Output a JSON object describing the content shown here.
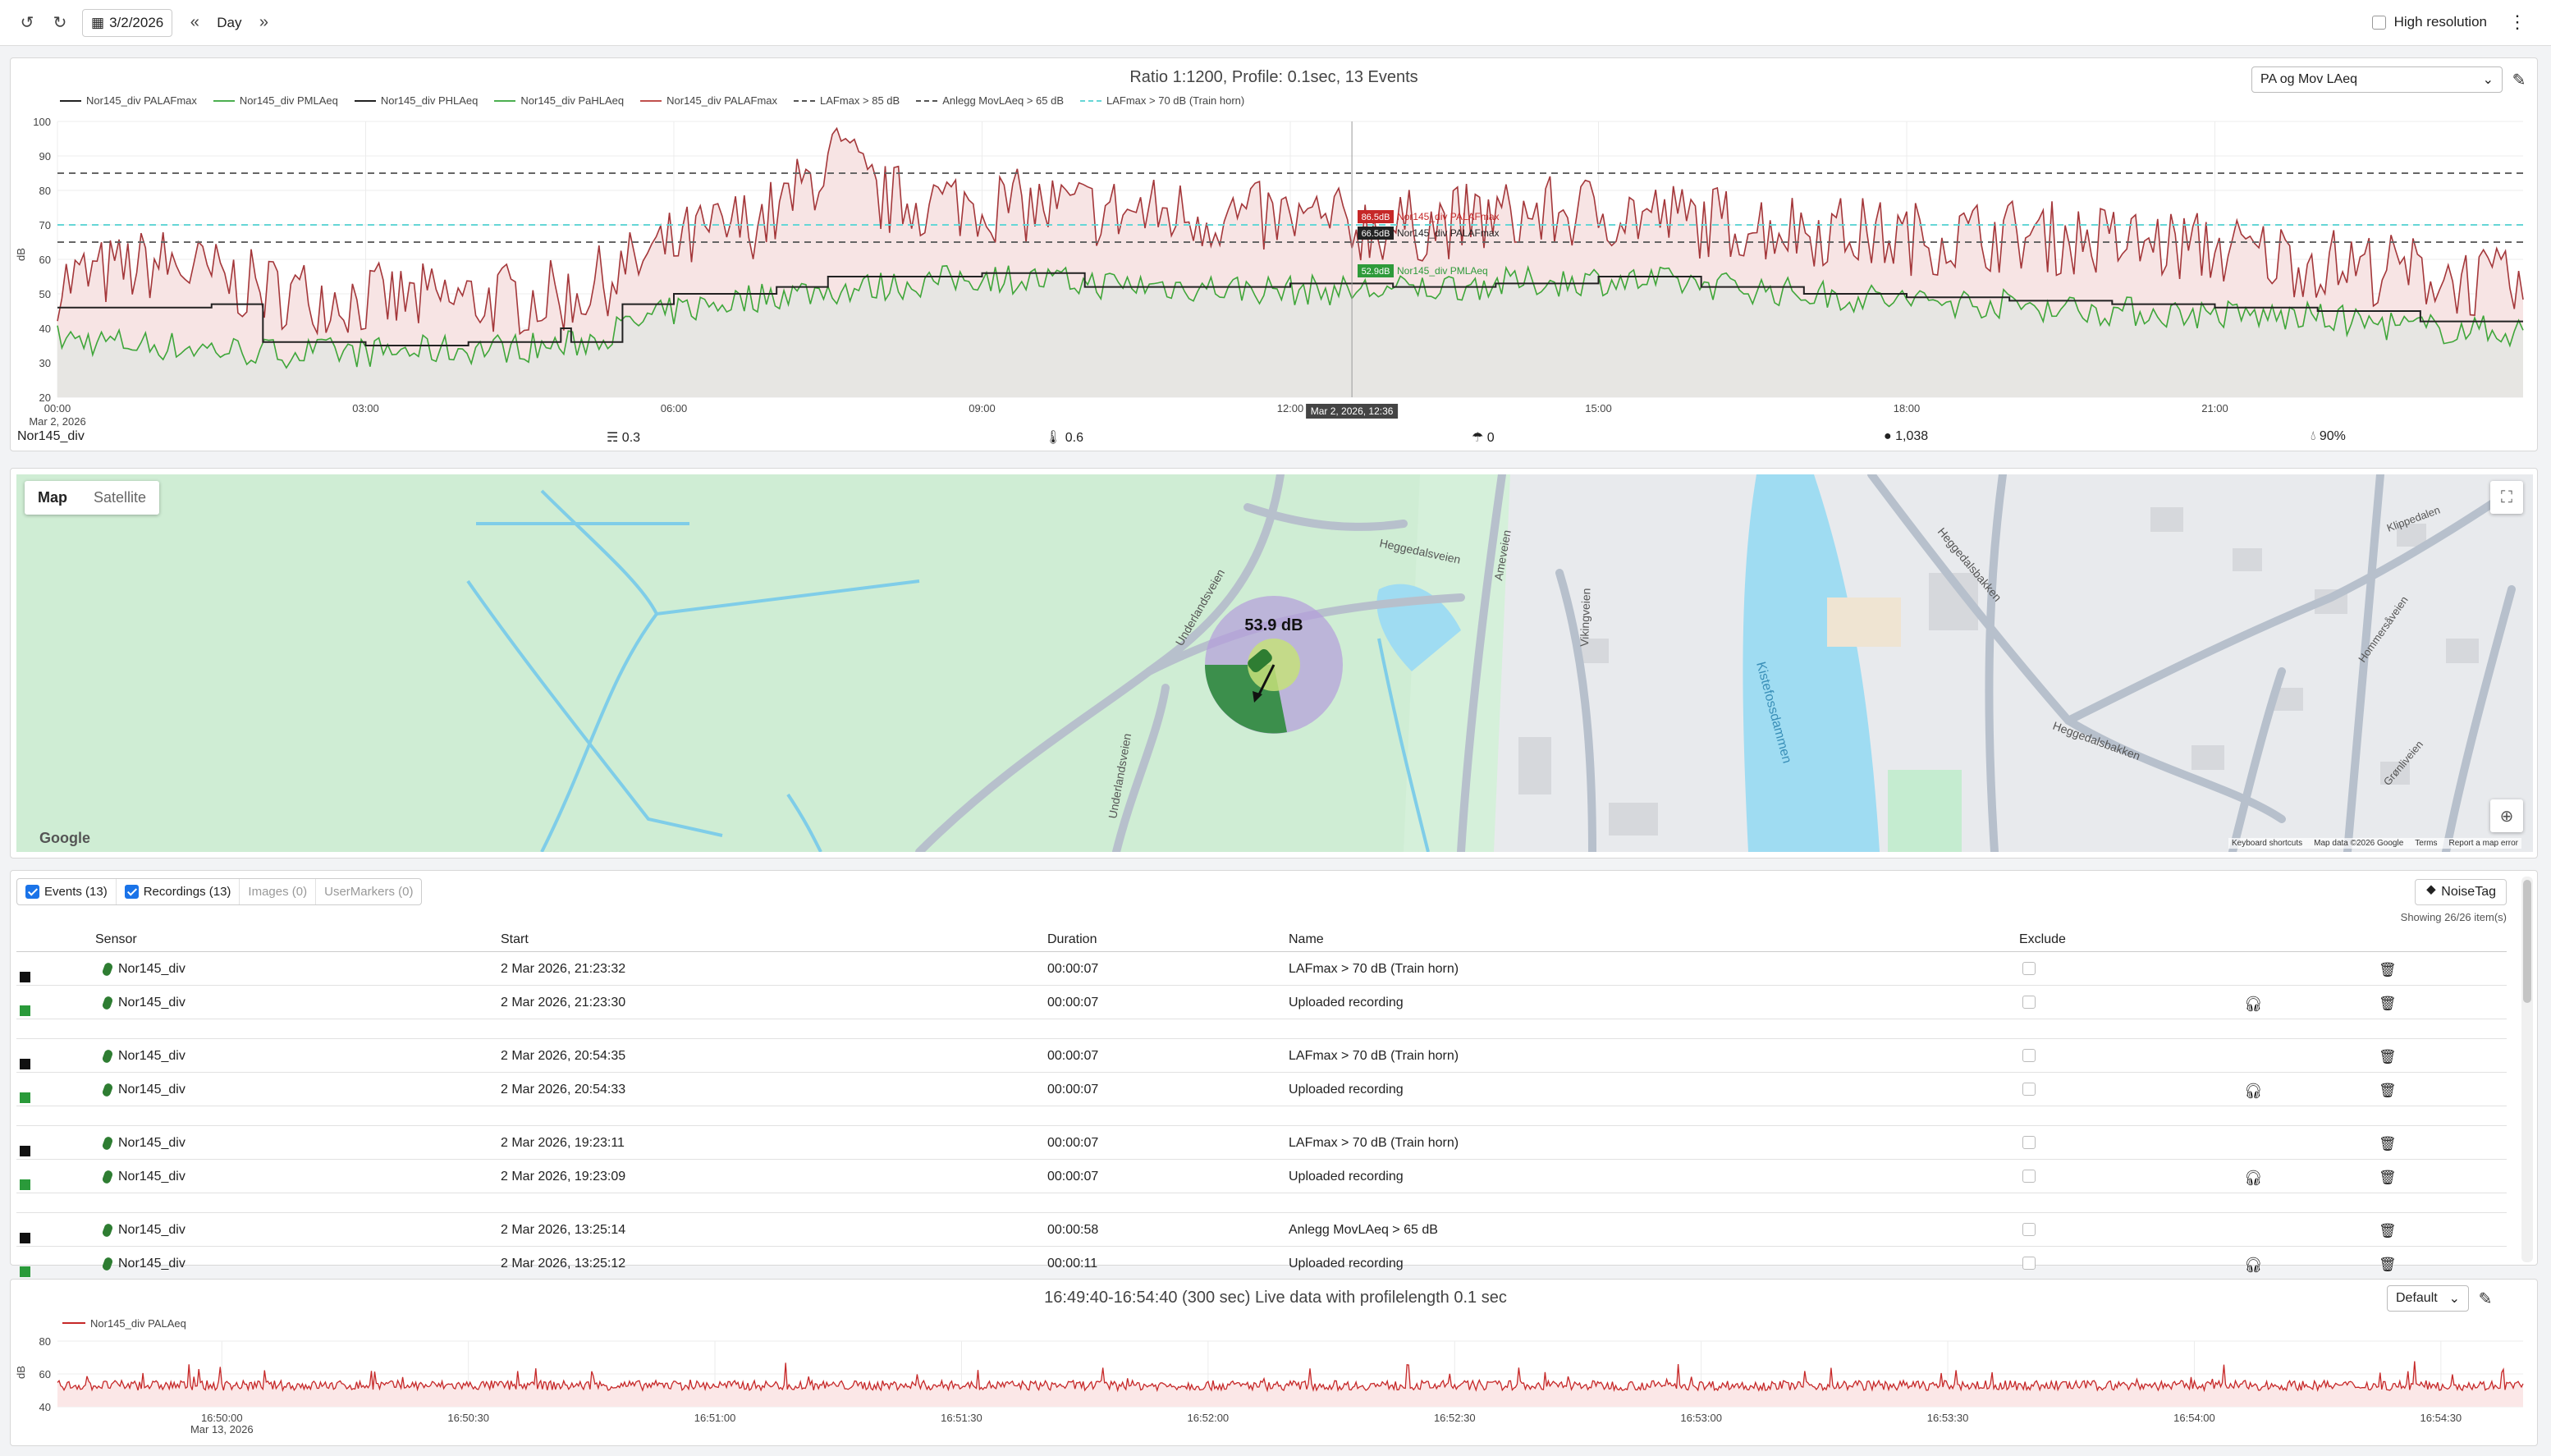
{
  "toolbar": {
    "date": "3/2/2026",
    "period": "Day",
    "high_resolution_label": "High resolution"
  },
  "chart1": {
    "title": "Ratio 1:1200, Profile: 0.1sec, 13 Events",
    "select_value": "PA og Mov LAeq",
    "legend": [
      {
        "label": "Nor145_div PALAFmax",
        "color": "#222222",
        "dash": false
      },
      {
        "label": "Nor145_div PMLAeq",
        "color": "#4caf50",
        "dash": false
      },
      {
        "label": "Nor145_div PHLAeq",
        "color": "#222222",
        "dash": false
      },
      {
        "label": "Nor145_div PaHLAeq",
        "color": "#4caf50",
        "dash": false
      },
      {
        "label": "Nor145_div PALAFmax",
        "color": "#c0504d",
        "dash": false
      },
      {
        "label": "LAFmax > 85 dB",
        "color": "#555555",
        "dash": true
      },
      {
        "label": "Anlegg MovLAeq > 65 dB",
        "color": "#555555",
        "dash": true
      },
      {
        "label": "LAFmax > 70 dB (Train horn)",
        "color": "#66d6d6",
        "dash": true
      }
    ],
    "tooltip": {
      "v1": "86.5dB",
      "n1": "Nor145_div PALAFmax",
      "v2": "66.5dB",
      "n2": "Nor145_div PALAFmax",
      "v3": "52.9dB",
      "n3": "Nor145_div PMLAeq",
      "time": "Mar 2, 2026, 12:36"
    },
    "sensor_label": "Nor145_div",
    "stats": [
      {
        "icon": "wind-icon",
        "value": "0.3"
      },
      {
        "icon": "temperature-icon",
        "value": "0.6"
      },
      {
        "icon": "rain-icon",
        "value": "0"
      },
      {
        "icon": "pressure-icon",
        "value": "1,038"
      },
      {
        "icon": "humidity-icon",
        "value": "90%"
      }
    ],
    "date_sub": "Mar 2, 2026"
  },
  "chart_data": [
    {
      "type": "line",
      "title": "Ratio 1:1200, Profile: 0.1sec, 13 Events",
      "ylabel": "dB",
      "ylim": [
        20,
        100
      ],
      "yticks": [
        20,
        30,
        40,
        50,
        60,
        70,
        80,
        90,
        100
      ],
      "xticks": [
        "00:00",
        "03:00",
        "06:00",
        "09:00",
        "12:00",
        "15:00",
        "18:00",
        "21:00"
      ],
      "thresholds": [
        {
          "name": "LAFmax > 85 dB",
          "value": 85
        },
        {
          "name": "LAFmax > 70 dB (Train horn)",
          "value": 70
        },
        {
          "name": "Anlegg MovLAeq > 65 dB",
          "value": 65
        }
      ],
      "series": [
        {
          "name": "Nor145_div PALAFmax",
          "hours": [
            0,
            1,
            2,
            3,
            4,
            5,
            6,
            7,
            7.6,
            8,
            9,
            10,
            11,
            12,
            13,
            14,
            15,
            16,
            17,
            18,
            19,
            20,
            21,
            22,
            23,
            24
          ],
          "values": [
            52,
            58,
            50,
            47,
            47,
            48,
            63,
            72,
            90,
            76,
            75,
            73,
            72,
            70,
            68,
            71,
            73,
            70,
            68,
            65,
            66,
            64,
            62,
            58,
            55,
            50
          ]
        },
        {
          "name": "Nor145_div PMLAeq",
          "hours": [
            0,
            1,
            2,
            3,
            4,
            5,
            6,
            7,
            8,
            9,
            10,
            11,
            12,
            13,
            14,
            15,
            16,
            17,
            18,
            19,
            20,
            21,
            22,
            23,
            24
          ],
          "values": [
            37,
            35,
            33,
            33,
            34,
            35,
            45,
            50,
            52,
            55,
            53,
            52,
            51,
            51,
            53,
            54,
            53,
            50,
            48,
            47,
            45,
            44,
            43,
            40,
            39
          ]
        },
        {
          "name": "Nor145_div PHLAeq",
          "steps": [
            [
              0,
              46
            ],
            [
              1.5,
              47
            ],
            [
              2,
              36
            ],
            [
              3,
              35
            ],
            [
              4,
              36
            ],
            [
              4.9,
              40
            ],
            [
              5,
              36
            ],
            [
              5.5,
              47
            ],
            [
              6,
              50
            ],
            [
              7,
              52
            ],
            [
              7.5,
              55
            ],
            [
              9,
              56
            ],
            [
              10,
              52
            ],
            [
              12,
              53
            ],
            [
              13,
              52
            ],
            [
              14,
              53
            ],
            [
              15,
              55
            ],
            [
              16,
              52
            ],
            [
              17,
              50
            ],
            [
              18,
              49
            ],
            [
              19,
              48
            ],
            [
              20,
              47
            ],
            [
              21,
              46
            ],
            [
              22,
              45
            ],
            [
              23,
              42
            ],
            [
              24,
              42
            ]
          ]
        }
      ]
    },
    {
      "type": "line",
      "title": "16:49:40-16:54:40 (300 sec) Live data with profilelength 0.1 sec",
      "ylabel": "dB",
      "ylim": [
        40,
        80
      ],
      "yticks": [
        40,
        60,
        80
      ],
      "xticks": [
        "16:50:00",
        "16:50:30",
        "16:51:00",
        "16:51:30",
        "16:52:00",
        "16:52:30",
        "16:53:00",
        "16:53:30",
        "16:54:00",
        "16:54:30"
      ],
      "series": [
        {
          "name": "Nor145_div PALAeq",
          "baseline": 53
        }
      ]
    }
  ],
  "map": {
    "tabs": [
      "Map",
      "Satellite"
    ],
    "level_label": "53.9 dB",
    "streets": [
      "Heggedalsveien",
      "Underlandsveien",
      "Underlandsveien",
      "Ameveien",
      "Vikingveien",
      "Heggedalsbakken",
      "Heggedalsbakken",
      "Kistefossdammen",
      "Klippedalen",
      "Hommersåveien",
      "Grønliveien"
    ],
    "footer": [
      "Keyboard shortcuts",
      "Map data ©2026 Google",
      "Terms",
      "Report a map error"
    ],
    "google": "Google"
  },
  "events": {
    "tabs": [
      {
        "label": "Events (13)",
        "checked": true
      },
      {
        "label": "Recordings (13)",
        "checked": true
      },
      {
        "label": "Images (0)",
        "checked": false
      },
      {
        "label": "UserMarkers (0)",
        "checked": false
      }
    ],
    "noisetag_label": "NoiseTag",
    "showing": "Showing 26/26 item(s)",
    "headers": {
      "sensor": "Sensor",
      "start": "Start",
      "duration": "Duration",
      "name": "Name",
      "exclude": "Exclude"
    },
    "rows": [
      {
        "kind": "event",
        "sensor": "Nor145_div",
        "start": "2 Mar 2026, 21:23:32",
        "duration": "00:00:07",
        "name": "LAFmax > 70 dB (Train horn)",
        "audio": false
      },
      {
        "kind": "recording",
        "sensor": "Nor145_div",
        "start": "2 Mar 2026, 21:23:30",
        "duration": "00:00:07",
        "name": "Uploaded recording",
        "audio": true
      },
      {
        "kind": "gap"
      },
      {
        "kind": "event",
        "sensor": "Nor145_div",
        "start": "2 Mar 2026, 20:54:35",
        "duration": "00:00:07",
        "name": "LAFmax > 70 dB (Train horn)",
        "audio": false
      },
      {
        "kind": "recording",
        "sensor": "Nor145_div",
        "start": "2 Mar 2026, 20:54:33",
        "duration": "00:00:07",
        "name": "Uploaded recording",
        "audio": true
      },
      {
        "kind": "gap"
      },
      {
        "kind": "event",
        "sensor": "Nor145_div",
        "start": "2 Mar 2026, 19:23:11",
        "duration": "00:00:07",
        "name": "LAFmax > 70 dB (Train horn)",
        "audio": false
      },
      {
        "kind": "recording",
        "sensor": "Nor145_div",
        "start": "2 Mar 2026, 19:23:09",
        "duration": "00:00:07",
        "name": "Uploaded recording",
        "audio": true
      },
      {
        "kind": "gap"
      },
      {
        "kind": "event",
        "sensor": "Nor145_div",
        "start": "2 Mar 2026, 13:25:14",
        "duration": "00:00:58",
        "name": "Anlegg MovLAeq > 65 dB",
        "audio": false
      },
      {
        "kind": "recording",
        "sensor": "Nor145_div",
        "start": "2 Mar 2026, 13:25:12",
        "duration": "00:00:11",
        "name": "Uploaded recording",
        "audio": true
      }
    ]
  },
  "chart2": {
    "title": "16:49:40-16:54:40 (300 sec) Live data with profilelength 0.1 sec",
    "select_value": "Default",
    "legend": "Nor145_div PALAeq",
    "date_sub": "Mar 13, 2026"
  }
}
